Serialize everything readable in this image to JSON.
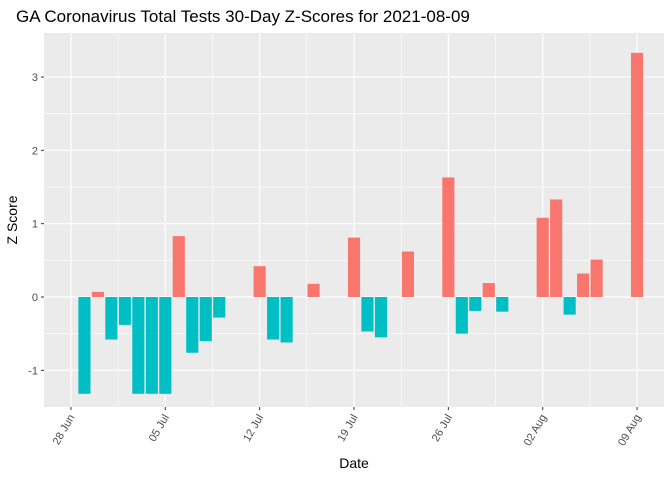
{
  "chart_data": {
    "type": "bar",
    "title": "GA Coronavirus Total Tests 30-Day Z-Scores for 2021-08-09",
    "xlabel": "Date",
    "ylabel": "Z Score",
    "x_tick_labels": [
      "28 Jun",
      "05 Jul",
      "12 Jul",
      "19 Jul",
      "26 Jul",
      "02 Aug",
      "09 Aug"
    ],
    "x_tick_dates": [
      "2021-06-28",
      "2021-07-05",
      "2021-07-12",
      "2021-07-19",
      "2021-07-26",
      "2021-08-02",
      "2021-08-09"
    ],
    "y_ticks": [
      -1,
      0,
      1,
      2,
      3
    ],
    "xlim": [
      "2021-06-26",
      "2021-08-11"
    ],
    "ylim": [
      -1.5,
      3.6
    ],
    "grid": true,
    "legend": "none",
    "colors": {
      "positive": "#F8766D",
      "negative": "#00BFC4",
      "panel": "#EBEBEB",
      "grid": "#FFFFFF"
    },
    "dates": [
      "2021-06-29",
      "2021-06-30",
      "2021-07-01",
      "2021-07-02",
      "2021-07-03",
      "2021-07-04",
      "2021-07-05",
      "2021-07-06",
      "2021-07-07",
      "2021-07-08",
      "2021-07-09",
      "2021-07-12",
      "2021-07-13",
      "2021-07-14",
      "2021-07-16",
      "2021-07-19",
      "2021-07-20",
      "2021-07-21",
      "2021-07-23",
      "2021-07-26",
      "2021-07-27",
      "2021-07-28",
      "2021-07-29",
      "2021-07-30",
      "2021-08-02",
      "2021-08-03",
      "2021-08-04",
      "2021-08-05",
      "2021-08-06",
      "2021-08-09"
    ],
    "values": [
      -1.32,
      0.07,
      -0.58,
      -0.38,
      -1.32,
      -1.32,
      -1.32,
      0.83,
      -0.76,
      -0.6,
      -0.28,
      0.42,
      -0.58,
      -0.62,
      0.18,
      0.81,
      -0.47,
      -0.55,
      0.62,
      1.63,
      -0.5,
      -0.19,
      0.19,
      -0.2,
      1.08,
      1.33,
      -0.24,
      0.32,
      0.51,
      3.33
    ]
  }
}
